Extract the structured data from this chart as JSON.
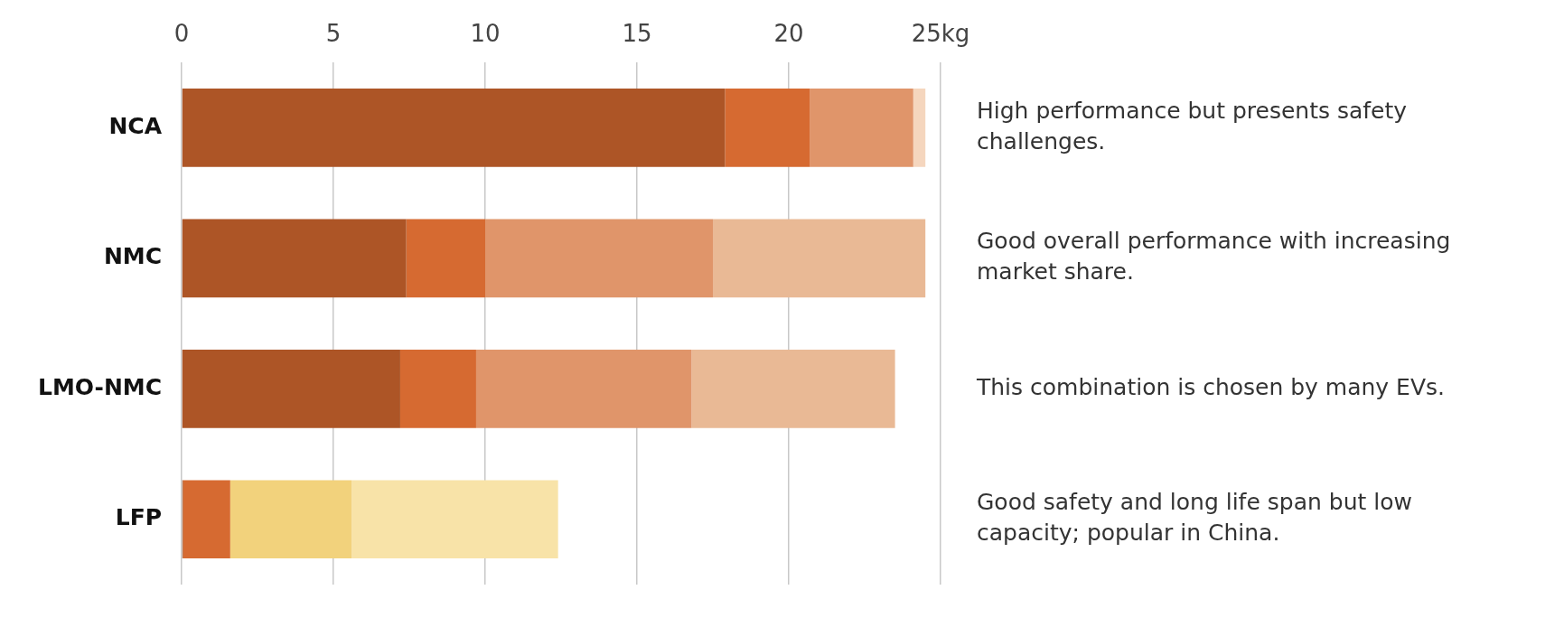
{
  "chart_data": {
    "type": "bar",
    "orientation": "horizontal",
    "stacked": true,
    "categories": [
      "NCA",
      "NMC",
      "LMO-NMC",
      "LFP"
    ],
    "series": [
      {
        "color": "#ad5526",
        "values": [
          17.9,
          7.4,
          7.2,
          0.05
        ]
      },
      {
        "color": "#d66a31",
        "values": [
          2.8,
          2.6,
          2.5,
          1.55
        ]
      },
      {
        "colors": [
          "#e0956a",
          "#e0956a",
          "#e0956a",
          "#f2d27c"
        ],
        "values": [
          3.4,
          7.5,
          7.1,
          4.0
        ]
      },
      {
        "colors": [
          "#f5d6be",
          "#e9b995",
          "#e9b995",
          "#f8e3a8"
        ],
        "values": [
          0.4,
          7.0,
          6.7,
          6.8
        ]
      }
    ],
    "xlim": [
      0,
      25
    ],
    "xticks": [
      0,
      5,
      10,
      15,
      20,
      {
        "value": 25,
        "label": "25kg"
      }
    ],
    "grid": "x",
    "legend": false,
    "annotations": [
      "High performance but presents safety challenges.",
      "Good overall performance with increasing market share.",
      "This combination is chosen by many EVs.",
      "Good safety and long life span but low capacity; popular in China."
    ]
  }
}
